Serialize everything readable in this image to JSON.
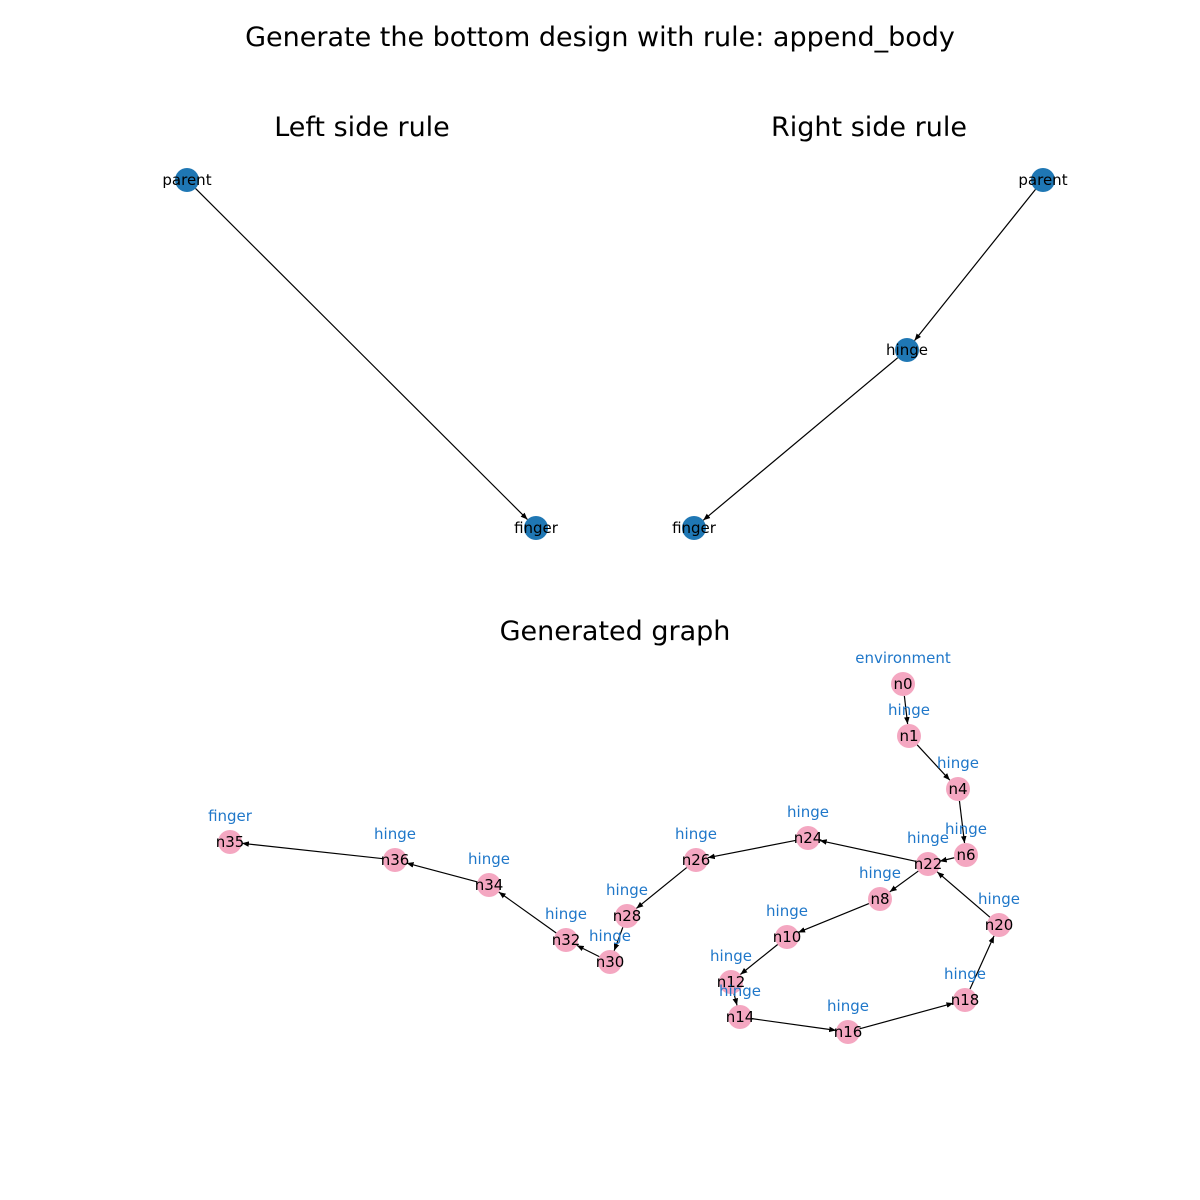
{
  "figure_title": "Generate the bottom design with rule: append_body",
  "colors": {
    "rule_node": "#1f77b4",
    "graph_node": "#f4a7c1",
    "type_label": "#1f77c9",
    "edge": "#000000"
  },
  "left_rule": {
    "title": "Left side rule",
    "nodes": [
      {
        "id": "parent",
        "label": "parent"
      },
      {
        "id": "finger",
        "label": "finger"
      }
    ],
    "edges": [
      [
        "parent",
        "finger"
      ]
    ]
  },
  "right_rule": {
    "title": "Right side rule",
    "nodes": [
      {
        "id": "parent",
        "label": "parent"
      },
      {
        "id": "hinge",
        "label": "hinge"
      },
      {
        "id": "finger",
        "label": "finger"
      }
    ],
    "edges": [
      [
        "parent",
        "hinge"
      ],
      [
        "hinge",
        "finger"
      ]
    ]
  },
  "generated_graph": {
    "title": "Generated graph",
    "nodes": [
      {
        "id": "n0",
        "label": "n0",
        "type": "environment"
      },
      {
        "id": "n1",
        "label": "n1",
        "type": "hinge"
      },
      {
        "id": "n4",
        "label": "n4",
        "type": "hinge"
      },
      {
        "id": "n6",
        "label": "n6",
        "type": "hinge"
      },
      {
        "id": "n22",
        "label": "n22",
        "type": "hinge"
      },
      {
        "id": "n24",
        "label": "n24",
        "type": "hinge"
      },
      {
        "id": "n26",
        "label": "n26",
        "type": "hinge"
      },
      {
        "id": "n28",
        "label": "n28",
        "type": "hinge"
      },
      {
        "id": "n30",
        "label": "n30",
        "type": "hinge"
      },
      {
        "id": "n32",
        "label": "n32",
        "type": "hinge"
      },
      {
        "id": "n34",
        "label": "n34",
        "type": "hinge"
      },
      {
        "id": "n36",
        "label": "n36",
        "type": "hinge"
      },
      {
        "id": "n35",
        "label": "n35",
        "type": "finger"
      },
      {
        "id": "n8",
        "label": "n8",
        "type": "hinge"
      },
      {
        "id": "n10",
        "label": "n10",
        "type": "hinge"
      },
      {
        "id": "n12",
        "label": "n12",
        "type": "hinge"
      },
      {
        "id": "n14",
        "label": "n14",
        "type": "hinge"
      },
      {
        "id": "n16",
        "label": "n16",
        "type": "hinge"
      },
      {
        "id": "n18",
        "label": "n18",
        "type": "hinge"
      },
      {
        "id": "n20",
        "label": "n20",
        "type": "hinge"
      }
    ],
    "edges": [
      [
        "n0",
        "n1"
      ],
      [
        "n1",
        "n4"
      ],
      [
        "n4",
        "n6"
      ],
      [
        "n6",
        "n22"
      ],
      [
        "n22",
        "n24"
      ],
      [
        "n24",
        "n26"
      ],
      [
        "n26",
        "n28"
      ],
      [
        "n28",
        "n30"
      ],
      [
        "n30",
        "n32"
      ],
      [
        "n32",
        "n34"
      ],
      [
        "n34",
        "n36"
      ],
      [
        "n36",
        "n35"
      ],
      [
        "n22",
        "n8"
      ],
      [
        "n8",
        "n10"
      ],
      [
        "n10",
        "n12"
      ],
      [
        "n12",
        "n14"
      ],
      [
        "n14",
        "n16"
      ],
      [
        "n16",
        "n18"
      ],
      [
        "n18",
        "n20"
      ],
      [
        "n20",
        "n22"
      ]
    ]
  }
}
